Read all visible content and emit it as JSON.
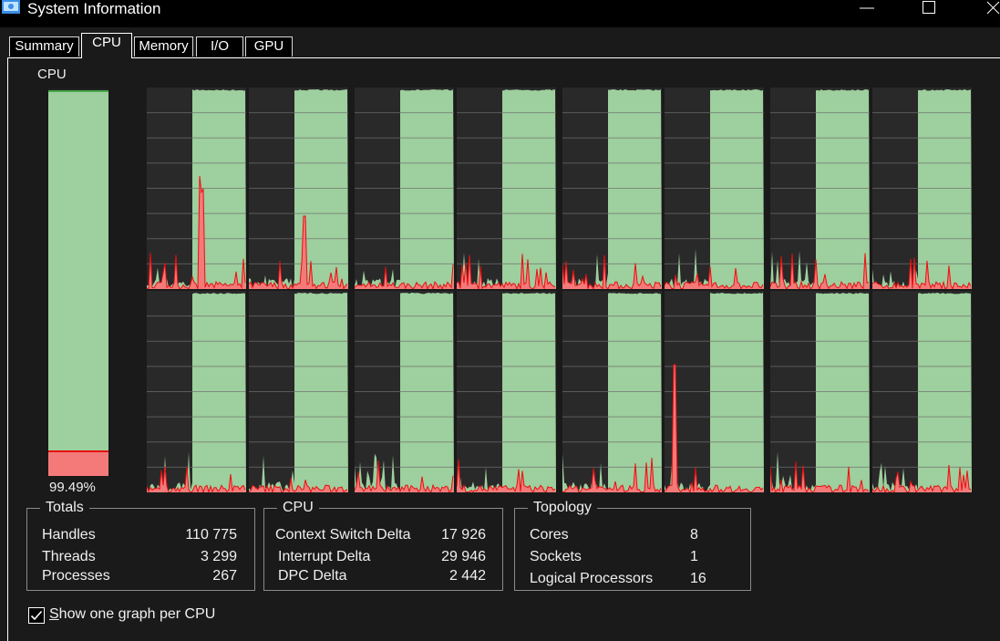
{
  "window": {
    "title": "System Information",
    "icon": "monitor-app-icon"
  },
  "titlebar_buttons": [
    "minimize-icon",
    "maximize-icon",
    "close-icon"
  ],
  "tabs": [
    {
      "label": "Summary"
    },
    {
      "label": "CPU",
      "active": true
    },
    {
      "label": "Memory"
    },
    {
      "label": "I/O"
    },
    {
      "label": "GPU"
    }
  ],
  "cpu_meter": {
    "label": "CPU",
    "usage_percent": 99.49,
    "usage_text": "99.49%",
    "kernel_fraction": 0.065
  },
  "colors": {
    "usage_fill": "#9ecf9e",
    "kernel_fill": "#f47a7a",
    "kernel_line": "#e81010",
    "idle_bg": "#292929"
  },
  "per_cpu_graphs": {
    "count": 16,
    "rows": 2,
    "columns": 8
  },
  "totals": {
    "title": "Totals",
    "rows": [
      {
        "label": "Handles",
        "value": "110 775"
      },
      {
        "label": "Threads",
        "value": "3 299"
      },
      {
        "label": "Processes",
        "value": "267"
      }
    ]
  },
  "cpu_stats": {
    "title": "CPU",
    "rows": [
      {
        "label": "Context Switch Delta",
        "value": "17 926"
      },
      {
        "label": "Interrupt Delta",
        "value": "29 946"
      },
      {
        "label": "DPC Delta",
        "value": "2 442"
      }
    ]
  },
  "topology": {
    "title": "Topology",
    "rows": [
      {
        "label": "Cores",
        "value": "8"
      },
      {
        "label": "Sockets",
        "value": "1"
      },
      {
        "label": "Logical Processors",
        "value": "16"
      }
    ]
  },
  "show_one_graph": {
    "checked": true,
    "accel": "S",
    "rest": "how one graph per CPU"
  }
}
